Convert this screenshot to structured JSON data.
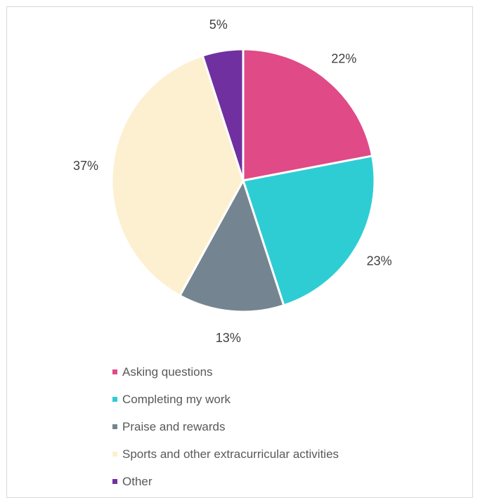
{
  "chart_data": {
    "type": "pie",
    "categories": [
      "Asking questions",
      "Completing my work",
      "Praise and rewards",
      "Sports and other extracurricular activities",
      "Other"
    ],
    "values": [
      22,
      23,
      13,
      37,
      5
    ],
    "labels": [
      "22%",
      "23%",
      "13%",
      "37%",
      "5%"
    ],
    "colors": [
      "#e04a87",
      "#2ecdd4",
      "#748591",
      "#fdf0d0",
      "#7030a0"
    ],
    "legend_position": "bottom"
  }
}
